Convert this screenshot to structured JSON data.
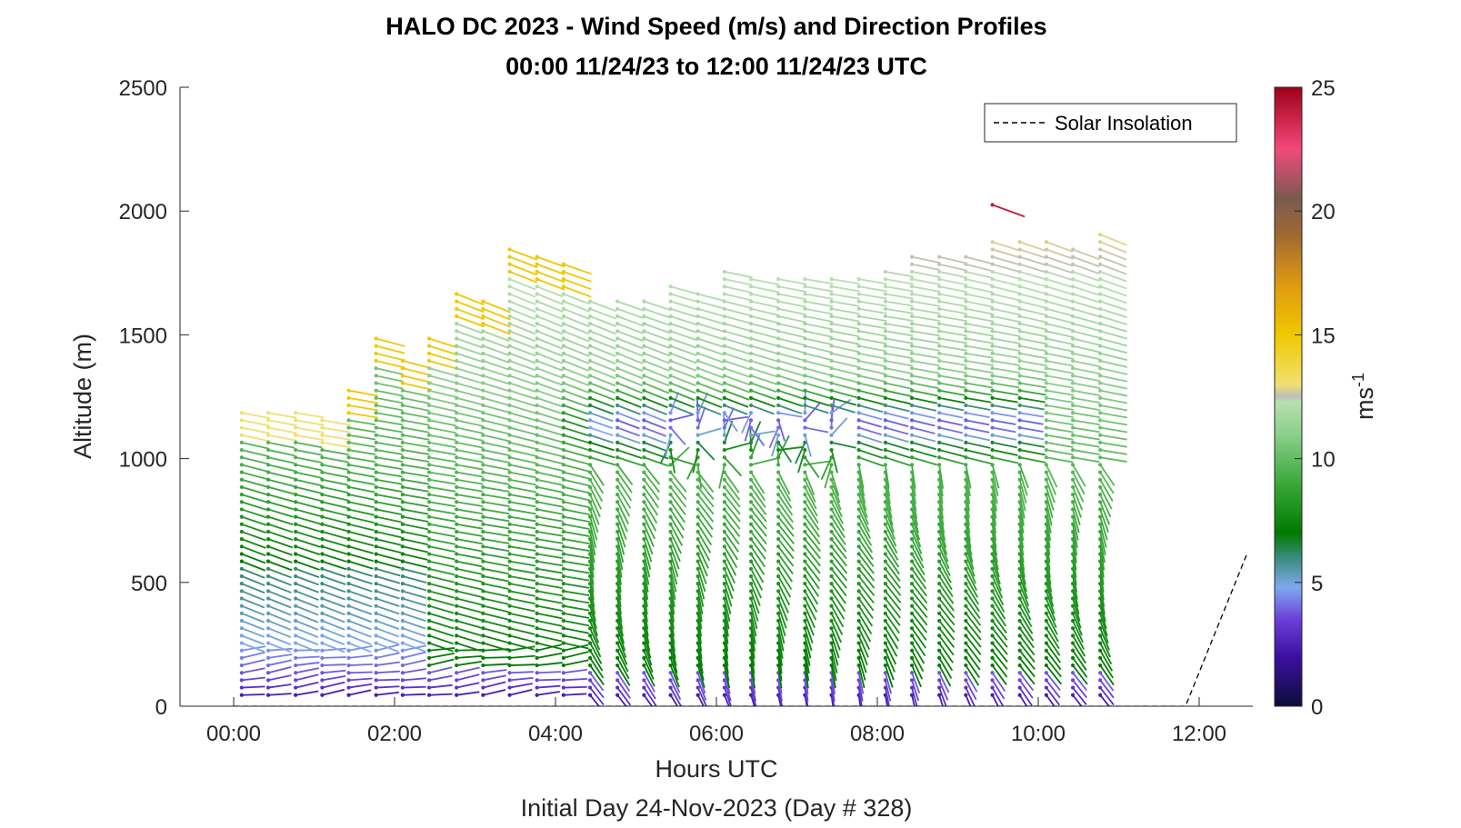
{
  "chart_data": {
    "type": "scatter",
    "title": "HALO DC 2023 - Wind Speed (m/s) and Direction Profiles",
    "subtitle": "00:00 11/24/23 to 12:00 11/24/23  UTC",
    "xlabel": "Hours UTC",
    "ylabel": "Altitude (m)",
    "footer": "Initial Day 24-Nov-2023 (Day # 328)",
    "xlim": [
      -0.6667,
      12.6667
    ],
    "ylim": [
      0,
      2500
    ],
    "x_ticks": [
      0,
      2,
      4,
      6,
      8,
      10,
      12
    ],
    "x_tick_labels": [
      "00:00",
      "02:00",
      "04:00",
      "06:00",
      "08:00",
      "10:00",
      "12:00"
    ],
    "y_ticks": [
      0,
      500,
      1000,
      1500,
      2000,
      2500
    ],
    "y_tick_labels": [
      "0",
      "500",
      "1000",
      "1500",
      "2000",
      "2500"
    ],
    "colorbar": {
      "label": "ms-1",
      "label_base": "ms",
      "label_exponent": "-1",
      "range": [
        0,
        25
      ],
      "ticks": [
        0,
        5,
        10,
        15,
        20,
        25
      ],
      "tick_labels": [
        "0",
        "5",
        "10",
        "15",
        "20",
        "25"
      ],
      "stops": [
        {
          "v": 0,
          "color": "#0d0d3a"
        },
        {
          "v": 2,
          "color": "#3a10a0"
        },
        {
          "v": 3.5,
          "color": "#6a40d8"
        },
        {
          "v": 4.8,
          "color": "#7fa8f0"
        },
        {
          "v": 6,
          "color": "#3a8c7a"
        },
        {
          "v": 7,
          "color": "#007a00"
        },
        {
          "v": 9,
          "color": "#3aa83a"
        },
        {
          "v": 11,
          "color": "#8ccf8c"
        },
        {
          "v": 12.3,
          "color": "#b8e0b0"
        },
        {
          "v": 12.5,
          "color": "#bdbdbd"
        },
        {
          "v": 13,
          "color": "#f0e070"
        },
        {
          "v": 15,
          "color": "#f0c800"
        },
        {
          "v": 17,
          "color": "#e09a10"
        },
        {
          "v": 19,
          "color": "#a06a30"
        },
        {
          "v": 20.5,
          "color": "#7a5a50"
        },
        {
          "v": 22.5,
          "color": "#f04a7a"
        },
        {
          "v": 25,
          "color": "#a00018"
        }
      ]
    },
    "legend": {
      "label": "Solar Insolation",
      "placement": "top-right",
      "line_style": "dashed",
      "color": "#000000"
    },
    "solar_insolation": {
      "x": [
        0,
        11.83,
        12.6
      ],
      "y": [
        0,
        0,
        620
      ]
    },
    "profiles_times": [
      0.1,
      0.43,
      0.77,
      1.1,
      1.43,
      1.77,
      2.1,
      2.43,
      2.77,
      3.1,
      3.43,
      3.77,
      4.1,
      4.43,
      4.77,
      5.1,
      5.43,
      5.77,
      6.1,
      6.43,
      6.77,
      7.1,
      7.43,
      7.77,
      8.1,
      8.43,
      8.77,
      9.1,
      9.43,
      9.77,
      10.1,
      10.43,
      10.77
    ],
    "profile_tops_m": [
      1210,
      1210,
      1210,
      1160,
      1290,
      1500,
      1410,
      1500,
      1670,
      1650,
      1870,
      1840,
      1790,
      1650,
      1650,
      1650,
      1710,
      1690,
      1780,
      1740,
      1740,
      1730,
      1750,
      1730,
      1780,
      1840,
      1830,
      1820,
      2050,
      1910,
      1880,
      1870,
      1910
    ],
    "range_gate_spacing_m": 30,
    "units": "m/s"
  }
}
